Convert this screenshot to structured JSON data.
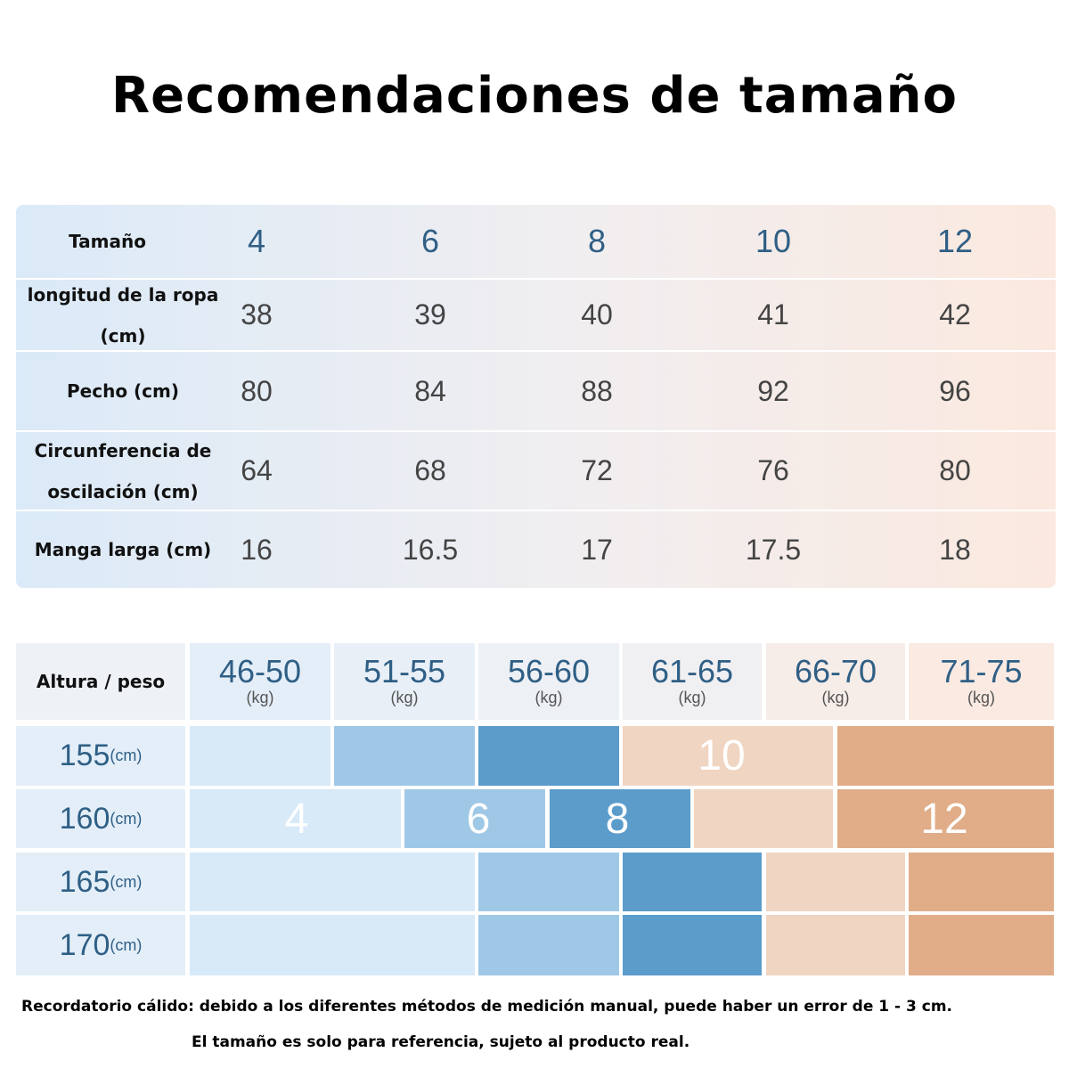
{
  "title": "Recomendaciones de tamaño",
  "size_table": {
    "header_label": "Tamaño",
    "sizes": [
      "4",
      "6",
      "8",
      "10",
      "12"
    ],
    "rows": [
      {
        "label": "longitud de la ropa (cm)",
        "values": [
          "38",
          "39",
          "40",
          "41",
          "42"
        ]
      },
      {
        "label": "Pecho (cm)",
        "values": [
          "80",
          "84",
          "88",
          "92",
          "96"
        ]
      },
      {
        "label": "Circunferencia de oscilación (cm)",
        "values": [
          "64",
          "68",
          "72",
          "76",
          "80"
        ]
      },
      {
        "label": "Manga larga (cm)",
        "values": [
          "16",
          "16.5",
          "17",
          "17.5",
          "18"
        ]
      }
    ]
  },
  "weight_table": {
    "header_label": "Altura / peso",
    "weights": [
      {
        "range": "46-50",
        "unit": "(kg)"
      },
      {
        "range": "51-55",
        "unit": "(kg)"
      },
      {
        "range": "56-60",
        "unit": "(kg)"
      },
      {
        "range": "61-65",
        "unit": "(kg)"
      },
      {
        "range": "66-70",
        "unit": "(kg)"
      },
      {
        "range": "71-75",
        "unit": "(kg)"
      }
    ],
    "heights": [
      {
        "value": "155",
        "unit": "(cm)",
        "size_labels": [
          "10"
        ]
      },
      {
        "value": "160",
        "unit": "(cm)",
        "size_labels": [
          "4",
          "6",
          "8",
          "12"
        ]
      },
      {
        "value": "165",
        "unit": "(cm)",
        "size_labels": []
      },
      {
        "value": "170",
        "unit": "(cm)",
        "size_labels": []
      }
    ]
  },
  "notes": [
    "Recordatorio cálido: debido a los diferentes métodos de medición manual, puede haber un error de 1 - 3 cm.",
    "El tamaño es solo para referencia, sujeto al producto real."
  ]
}
